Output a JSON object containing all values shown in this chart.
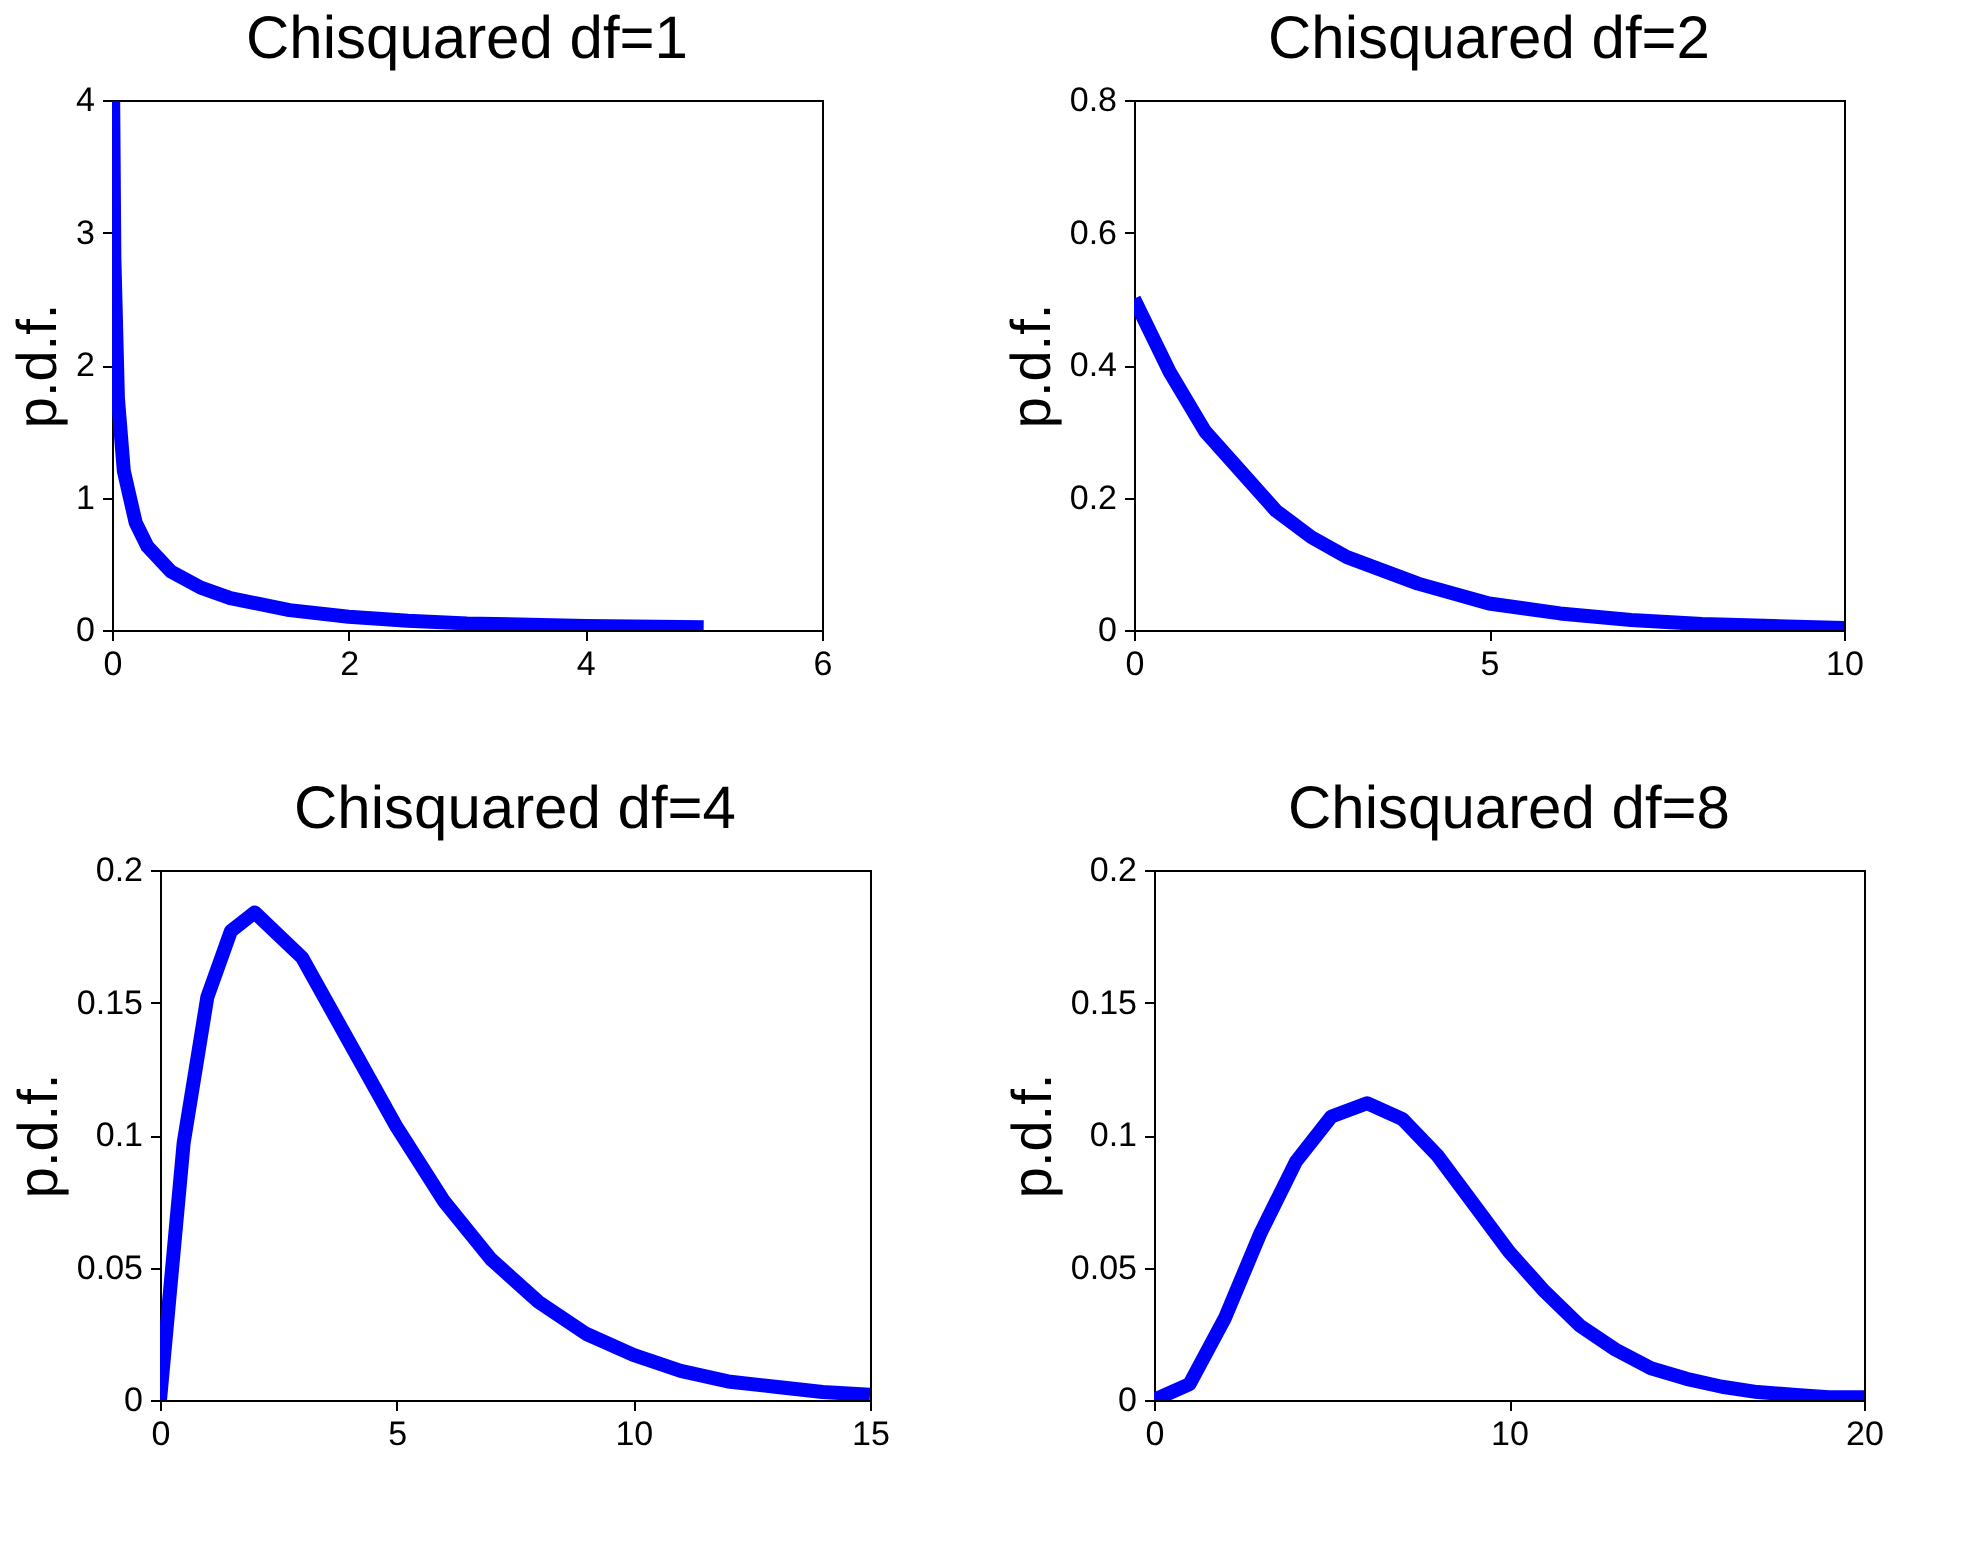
{
  "chart_data": [
    {
      "type": "line",
      "title": "Chisquared df=1",
      "ylabel": "p.d.f.",
      "x": [
        0.01,
        0.02,
        0.05,
        0.1,
        0.2,
        0.3,
        0.5,
        0.75,
        1,
        1.5,
        2,
        2.5,
        3,
        4,
        5
      ],
      "series": [
        {
          "color": "#0000ff",
          "values": [
            3.99,
            2.81,
            1.75,
            1.2,
            0.81,
            0.63,
            0.44,
            0.32,
            0.24,
            0.15,
            0.1,
            0.07,
            0.05,
            0.03,
            0.02
          ]
        }
      ],
      "xlim": [
        0,
        6
      ],
      "ylim": [
        0,
        4
      ],
      "xticks": [
        0,
        2,
        4,
        6
      ],
      "yticks": [
        0,
        1,
        2,
        3,
        4
      ]
    },
    {
      "type": "line",
      "title": "Chisquared df=2",
      "ylabel": "p.d.f.",
      "x": [
        0,
        0.5,
        1,
        1.5,
        2,
        2.5,
        3,
        4,
        5,
        6,
        7,
        8,
        9,
        10
      ],
      "series": [
        {
          "color": "#0000ff",
          "values": [
            0.5,
            0.39,
            0.3,
            0.24,
            0.18,
            0.14,
            0.11,
            0.07,
            0.04,
            0.025,
            0.015,
            0.009,
            0.006,
            0.003
          ]
        }
      ],
      "xlim": [
        0,
        10
      ],
      "ylim": [
        0,
        0.8
      ],
      "xticks": [
        0,
        5,
        10
      ],
      "yticks": [
        0,
        0.2,
        0.4,
        0.6,
        0.8
      ]
    },
    {
      "type": "line",
      "title": "Chisquared df=4",
      "ylabel": "p.d.f.",
      "x": [
        0,
        0.5,
        1,
        1.5,
        2,
        3,
        4,
        5,
        6,
        7,
        8,
        9,
        10,
        11,
        12,
        13,
        14,
        15
      ],
      "series": [
        {
          "color": "#0000ff",
          "values": [
            0,
            0.097,
            0.152,
            0.177,
            0.184,
            0.167,
            0.135,
            0.103,
            0.075,
            0.053,
            0.037,
            0.025,
            0.017,
            0.011,
            0.007,
            0.005,
            0.003,
            0.002
          ]
        }
      ],
      "xlim": [
        0,
        15
      ],
      "ylim": [
        0,
        0.2
      ],
      "xticks": [
        0,
        5,
        10,
        15
      ],
      "yticks": [
        0,
        0.05,
        0.1,
        0.15,
        0.2
      ]
    },
    {
      "type": "line",
      "title": "Chisquared df=8",
      "ylabel": "p.d.f.",
      "x": [
        0,
        1,
        2,
        3,
        4,
        5,
        6,
        7,
        8,
        9,
        10,
        11,
        12,
        13,
        14,
        15,
        16,
        17,
        18,
        19,
        20
      ],
      "series": [
        {
          "color": "#0000ff",
          "values": [
            0,
            0.006,
            0.031,
            0.063,
            0.09,
            0.107,
            0.112,
            0.106,
            0.092,
            0.074,
            0.056,
            0.041,
            0.028,
            0.019,
            0.012,
            0.008,
            0.005,
            0.003,
            0.002,
            0.001,
            0.001
          ]
        }
      ],
      "xlim": [
        0,
        20
      ],
      "ylim": [
        0,
        0.2
      ],
      "xticks": [
        0,
        10,
        20
      ],
      "yticks": [
        0,
        0.05,
        0.1,
        0.15,
        0.2
      ]
    }
  ]
}
